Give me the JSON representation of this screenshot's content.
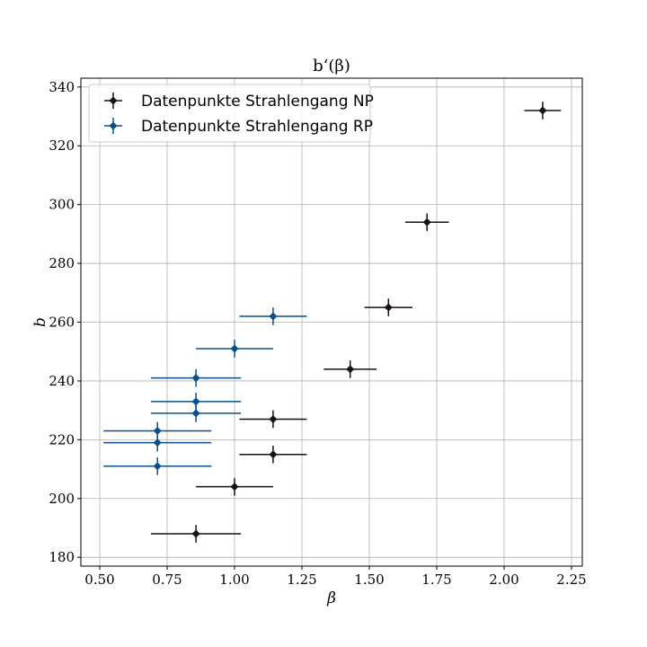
{
  "chart_data": {
    "type": "scatter",
    "title": "b‘(β)",
    "xlabel": "β",
    "ylabel": "b",
    "xlim": [
      0.43,
      2.29
    ],
    "ylim": [
      177,
      343
    ],
    "xticks": [
      0.5,
      0.75,
      1.0,
      1.25,
      1.5,
      1.75,
      2.0,
      2.25
    ],
    "xtick_labels": [
      "0.50",
      "0.75",
      "1.00",
      "1.25",
      "1.50",
      "1.75",
      "2.00",
      "2.25"
    ],
    "yticks": [
      180,
      200,
      220,
      240,
      260,
      280,
      300,
      320,
      340
    ],
    "ytick_labels": [
      "180",
      "200",
      "220",
      "240",
      "260",
      "280",
      "300",
      "320",
      "340"
    ],
    "grid": true,
    "legend_position": "top-left",
    "series": [
      {
        "name": "Datenpunkte Strahlengang NP",
        "color": "#1a1111",
        "points": [
          {
            "x": 0.857,
            "y": 188,
            "xerr": 0.167,
            "yerr": 3
          },
          {
            "x": 1.0,
            "y": 204,
            "xerr": 0.143,
            "yerr": 3
          },
          {
            "x": 1.143,
            "y": 215,
            "xerr": 0.125,
            "yerr": 3
          },
          {
            "x": 1.143,
            "y": 227,
            "xerr": 0.125,
            "yerr": 3
          },
          {
            "x": 1.429,
            "y": 244,
            "xerr": 0.098,
            "yerr": 3
          },
          {
            "x": 1.571,
            "y": 265,
            "xerr": 0.089,
            "yerr": 3
          },
          {
            "x": 1.714,
            "y": 294,
            "xerr": 0.081,
            "yerr": 3
          },
          {
            "x": 2.143,
            "y": 332,
            "xerr": 0.068,
            "yerr": 3
          }
        ]
      },
      {
        "name": "Datenpunkte Strahlengang RP",
        "color": "#0b4f8a",
        "points": [
          {
            "x": 0.714,
            "y": 211,
            "xerr": 0.2,
            "yerr": 3
          },
          {
            "x": 0.714,
            "y": 219,
            "xerr": 0.2,
            "yerr": 3
          },
          {
            "x": 0.714,
            "y": 223,
            "xerr": 0.2,
            "yerr": 3
          },
          {
            "x": 0.857,
            "y": 229,
            "xerr": 0.167,
            "yerr": 3
          },
          {
            "x": 0.857,
            "y": 233,
            "xerr": 0.167,
            "yerr": 3
          },
          {
            "x": 0.857,
            "y": 241,
            "xerr": 0.167,
            "yerr": 3
          },
          {
            "x": 1.0,
            "y": 251,
            "xerr": 0.143,
            "yerr": 3
          },
          {
            "x": 1.143,
            "y": 262,
            "xerr": 0.125,
            "yerr": 3
          }
        ]
      }
    ]
  }
}
